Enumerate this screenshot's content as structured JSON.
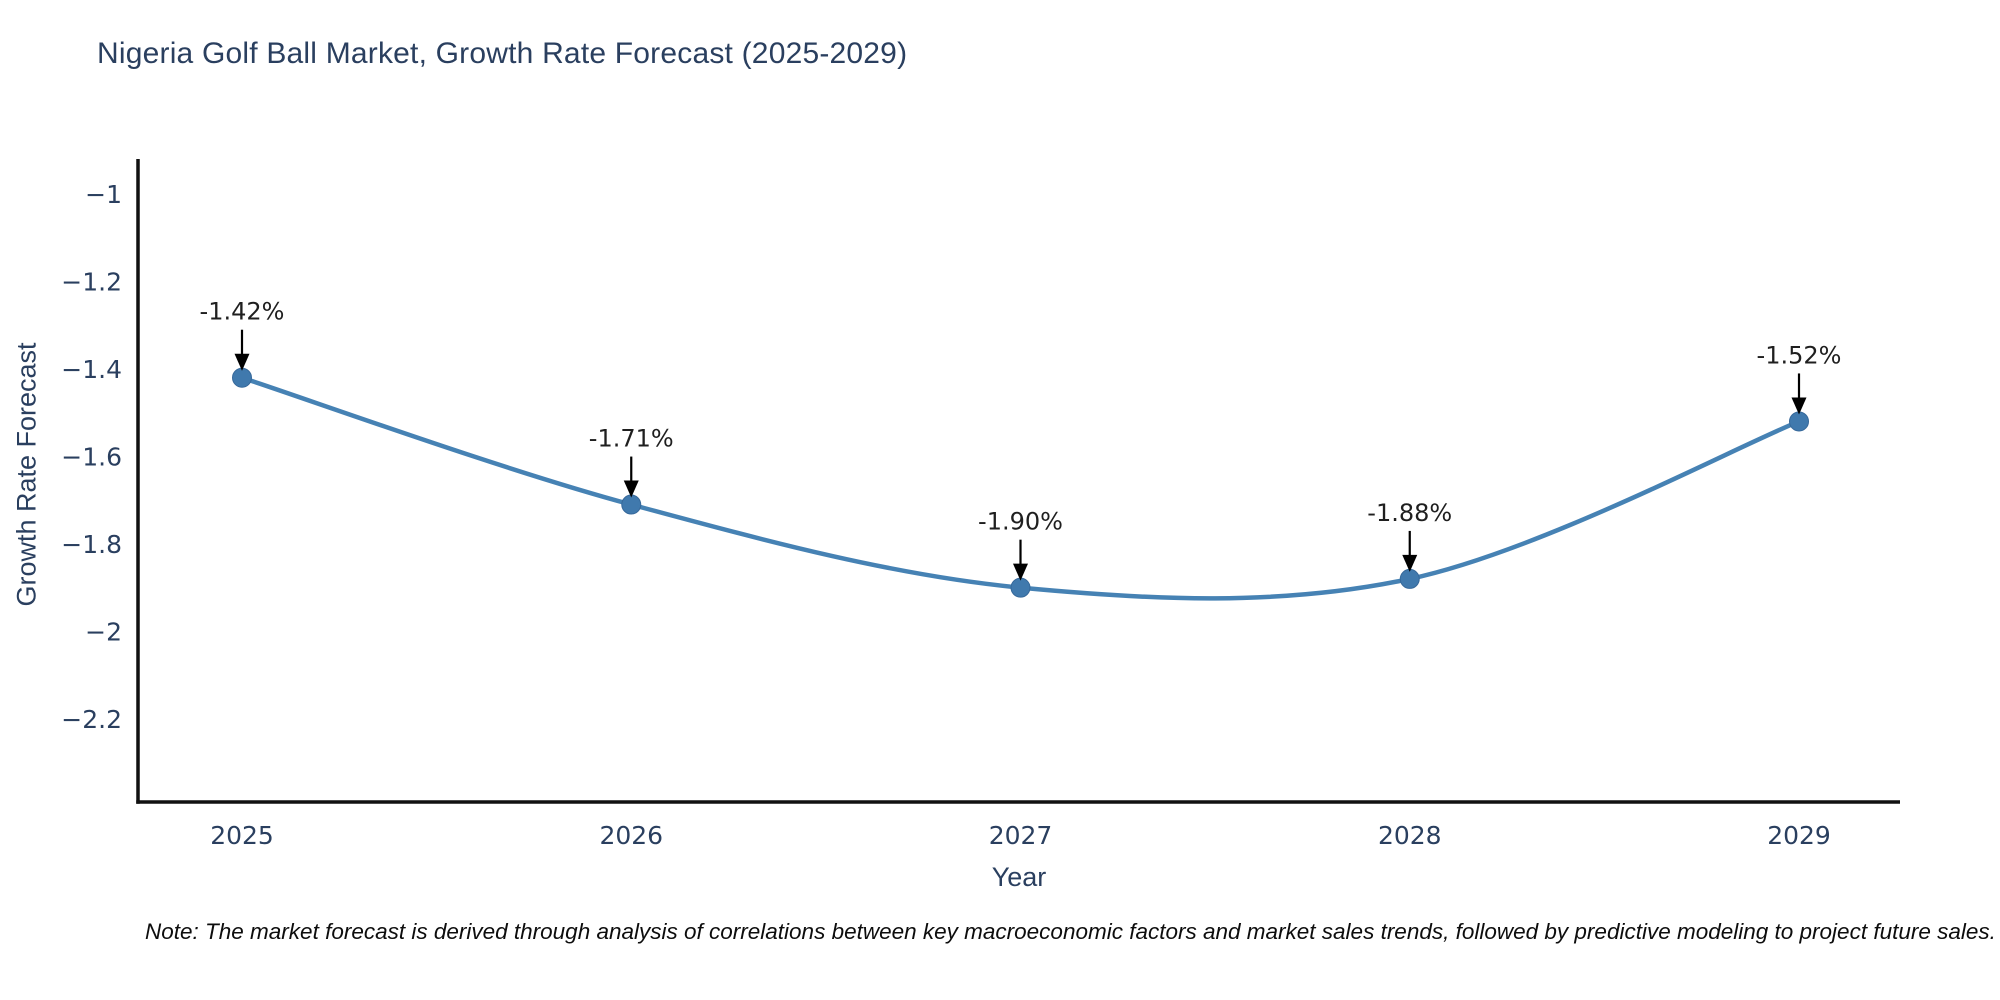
{
  "page": {
    "background": "#ffffff"
  },
  "chart": {
    "note": "Note: The market forecast is derived through analysis of correlations between key macroeconomic factors and market sales trends, followed by predictive modeling to project future sales."
  },
  "chart_data": {
    "type": "line",
    "title": "Nigeria Golf Ball Market, Growth Rate Forecast (2025-2029)",
    "xlabel": "Year",
    "ylabel": "Growth Rate Forecast",
    "categories": [
      "2025",
      "2026",
      "2027",
      "2028",
      "2029"
    ],
    "values": [
      -1.42,
      -1.71,
      -1.9,
      -1.88,
      -1.52
    ],
    "point_labels": [
      "-1.42%",
      "-1.71%",
      "-1.90%",
      "-1.88%",
      "-1.52%"
    ],
    "yticks": [
      -1,
      -1.2,
      -1.4,
      -1.6,
      -1.8,
      -2,
      -2.2
    ],
    "ytick_labels": [
      "−1",
      "−1.2",
      "−1.4",
      "−1.6",
      "−1.8",
      "−2",
      "−2.2"
    ],
    "ylim": [
      -2.39,
      -0.92
    ],
    "grid": false,
    "legend": "none",
    "smooth": true,
    "line_color": "#4682b4",
    "marker_color": "#4079ad",
    "marker_edge_color": "#36689a",
    "axis_color": "#111111",
    "annotation_arrow_color": "#000000",
    "text_color": "#2a3f5f"
  }
}
